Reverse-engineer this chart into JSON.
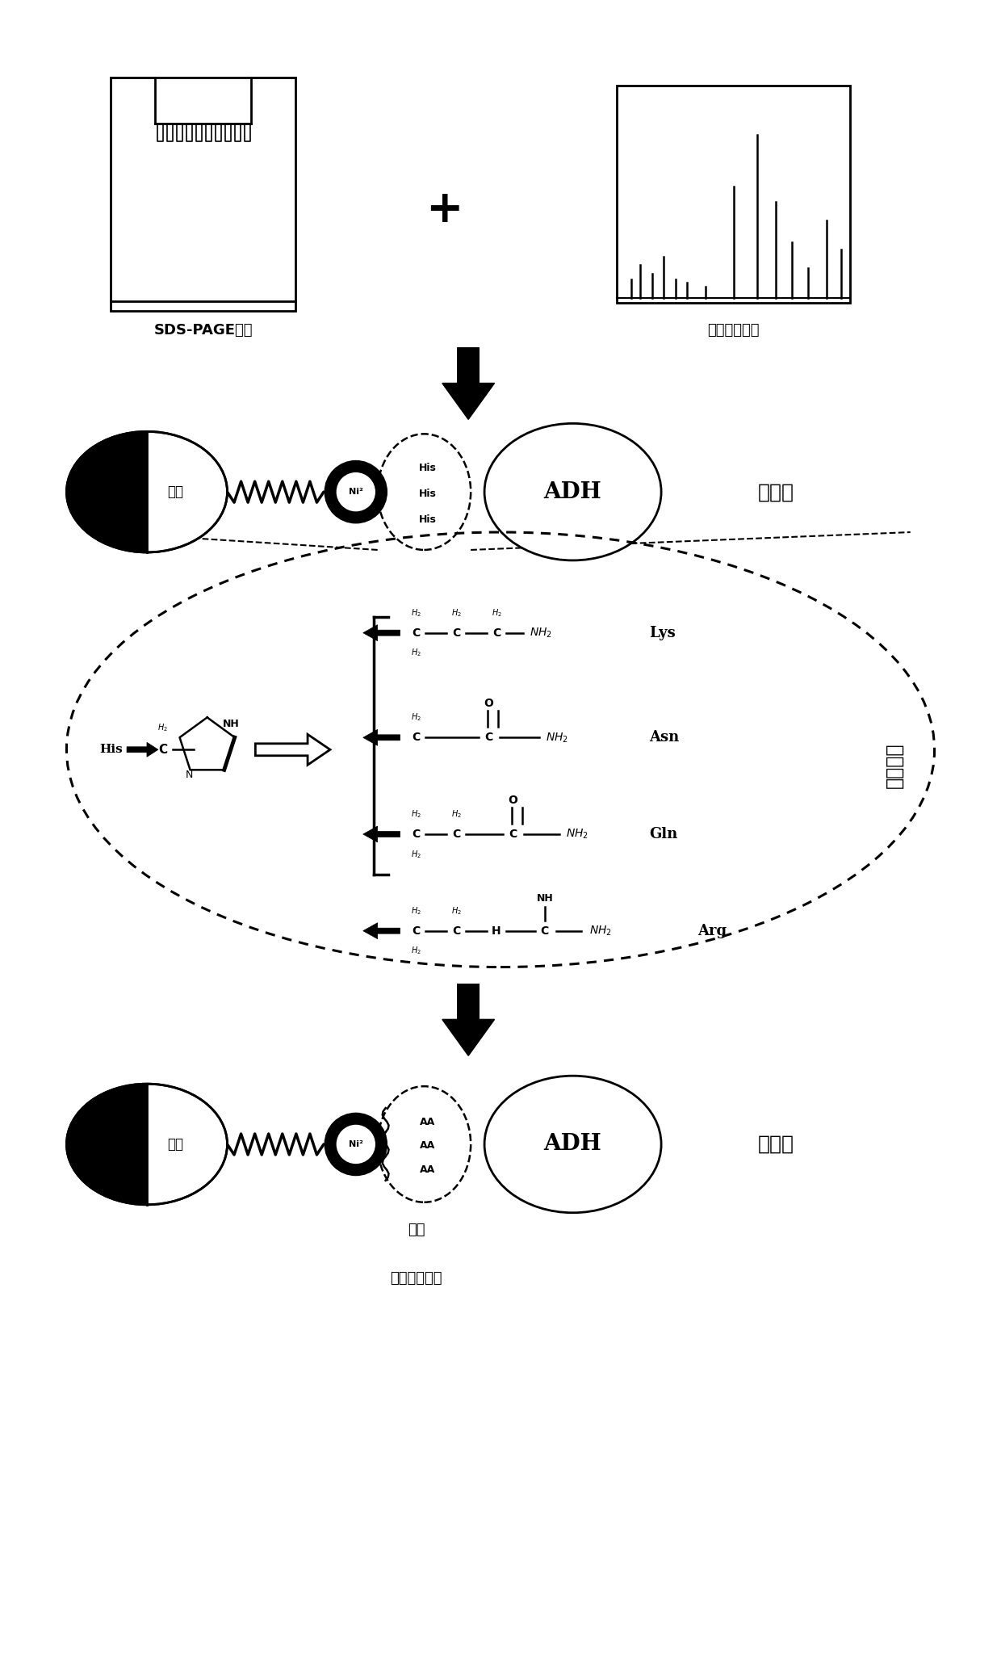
{
  "bg_color": "#ffffff",
  "text_color": "#000000",
  "label_sds": "SDS-PAGE检测",
  "label_ms": "质谱分析鉴定",
  "label_wildtype": "野生型",
  "label_mutant": "突变株",
  "label_guxiang": "固相",
  "label_duanlie": "断裂",
  "label_bianhua": "突变后氨基酸",
  "label_dingdian": "定点突变",
  "label_ni": "Ni²",
  "label_adh": "ADH",
  "label_lys": "Lys",
  "label_asn": "Asn",
  "label_gln": "Gln",
  "label_arg": "Arg"
}
